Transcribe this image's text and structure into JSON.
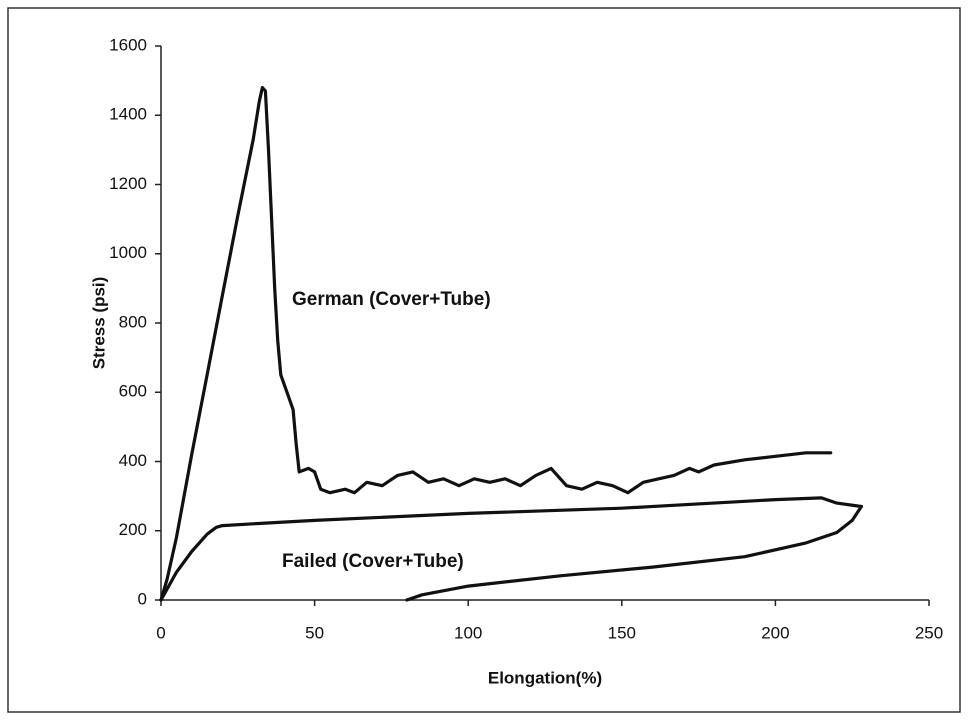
{
  "chart_data": {
    "type": "line",
    "xlabel": "Elongation(%)",
    "ylabel": "Stress (psi)",
    "xlim": [
      0,
      250
    ],
    "xticks": [
      0,
      50,
      100,
      150,
      200,
      250
    ],
    "ylim": [
      0,
      1600
    ],
    "yticks": [
      0,
      200,
      400,
      600,
      800,
      1000,
      1200,
      1400,
      1600
    ],
    "grid": false,
    "series": [
      {
        "name": "German (Cover+Tube)",
        "color": "#111111",
        "x": [
          0,
          2,
          5,
          10,
          15,
          20,
          25,
          30,
          32,
          33,
          34,
          35,
          36,
          37,
          38,
          39,
          41,
          43,
          44,
          45,
          48,
          50,
          52,
          55,
          60,
          63,
          67,
          72,
          77,
          82,
          87,
          92,
          97,
          102,
          107,
          112,
          117,
          122,
          127,
          132,
          137,
          142,
          147,
          152,
          157,
          162,
          167,
          172,
          175,
          180,
          190,
          200,
          210,
          218
        ],
        "values": [
          0,
          60,
          180,
          420,
          650,
          880,
          1110,
          1330,
          1440,
          1480,
          1470,
          1300,
          1100,
          900,
          750,
          650,
          600,
          550,
          450,
          370,
          380,
          370,
          320,
          310,
          320,
          310,
          340,
          330,
          360,
          370,
          340,
          350,
          330,
          350,
          340,
          350,
          330,
          360,
          380,
          330,
          320,
          340,
          330,
          310,
          340,
          350,
          360,
          380,
          370,
          390,
          405,
          415,
          425,
          425
        ]
      },
      {
        "name": "Failed (Cover+Tube)",
        "color": "#111111",
        "x": [
          0,
          5,
          10,
          15,
          18,
          20,
          30,
          50,
          100,
          150,
          200,
          215,
          220,
          228,
          225,
          220,
          210,
          190,
          160,
          130,
          100,
          85,
          80
        ],
        "values": [
          0,
          80,
          140,
          190,
          210,
          215,
          220,
          230,
          250,
          265,
          290,
          295,
          280,
          270,
          230,
          195,
          165,
          125,
          95,
          70,
          40,
          15,
          0
        ]
      }
    ]
  }
}
